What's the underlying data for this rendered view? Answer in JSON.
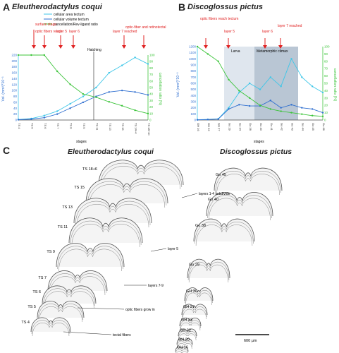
{
  "panelA": {
    "letter": "A",
    "title": "Eleutherodactylus coqui",
    "legend": [
      "cellular area tectum",
      "cellular volume tectum",
      "cancellation/Rev-ligand ratio"
    ],
    "legend_colors": [
      "#3ec6e8",
      "#2f6fd0",
      "#3cc43a"
    ],
    "events": [
      "surface stage",
      "optic fibers reach",
      "layer 5",
      "layer 6",
      "layer 7 reached",
      "optic-fiber and retinotectal"
    ],
    "hatching_label": "Hatching",
    "xlabel": "stages",
    "y_left_label": "Vol. (mm³)*10⁻³",
    "y_right_label": "cancellation ratio (%)",
    "y_left_ticks": [
      "220",
      "200",
      "180",
      "160",
      "140",
      "120",
      "100",
      "80",
      "60",
      "40",
      "20",
      "0"
    ],
    "y_right_ticks": [
      "100",
      "90",
      "80",
      "70",
      "60",
      "50",
      "40",
      "30",
      "20",
      "10",
      "0"
    ],
    "x_ticks": [
      "TS 4",
      "TS 5",
      "TS 6",
      "TS 7",
      "TS 8",
      "TS 9",
      "TS 11",
      "TS 13",
      "TS 15",
      "TS 14+4",
      "TS 18+10"
    ]
  },
  "panelB": {
    "letter": "B",
    "title": "Discoglossus pictus",
    "larva_label": "Larva",
    "meta_label": "Metamorphic climax",
    "events": [
      "optic fibers reach tectum",
      "layer 5",
      "layer 6",
      "layer 7 reached"
    ],
    "xlabel": "stages",
    "y_left_label": "Vol. (mm³)*10⁻³",
    "y_right_label": "cancellation ratio (%)",
    "y_left_ticks": [
      "1200",
      "1100",
      "1000",
      "900",
      "800",
      "700",
      "600",
      "500",
      "400",
      "300",
      "200",
      "100",
      "0"
    ],
    "y_right_ticks": [
      "100",
      "90",
      "80",
      "70",
      "60",
      "50",
      "40",
      "30",
      "20",
      "10",
      "0"
    ],
    "x_ticks": [
      "GH 16",
      "GH 22",
      "GH 27",
      "Go 29",
      "Go 34",
      "Go 38",
      "Go 40",
      "Go 41",
      "Go 42",
      "Go 43",
      "Go 44",
      "Go 45",
      "Go 66"
    ]
  },
  "panelC": {
    "letter": "C",
    "left_species": "Eleutherodactylus coqui",
    "right_species": "Discoglossus pictus",
    "left_stages": [
      "TS 18+6",
      "TS 15",
      "TS 13",
      "TS 11",
      "TS 9",
      "TS 7",
      "TS 6",
      "TS 5",
      "TS 4"
    ],
    "right_stages": [
      "Go 45",
      "Go 40",
      "Go 38",
      "Go 29",
      "GH 30",
      "GH 27",
      "GH 23",
      "GH 22",
      "GH 20",
      "GH 16"
    ],
    "annotations": [
      "layers 1-4 subdivide",
      "layer 5",
      "layers 7-9",
      "optic fibers grow in",
      "tectal fibers"
    ],
    "scale_label": "600 µm"
  },
  "chart_data": [
    {
      "type": "line",
      "title": "Eleutherodactylus coqui",
      "x": [
        "TS 4",
        "TS 5",
        "TS 6",
        "TS 7",
        "TS 8",
        "TS 9",
        "TS 11",
        "TS 13",
        "TS 15",
        "TS 14+4",
        "TS 18+10"
      ],
      "series": [
        {
          "name": "cellular area tectum",
          "values": [
            2,
            5,
            15,
            30,
            55,
            80,
            110,
            160,
            185,
            212,
            190
          ],
          "axis": "left"
        },
        {
          "name": "cellular volume tectum",
          "values": [
            1,
            3,
            8,
            20,
            40,
            60,
            80,
            95,
            100,
            95,
            85
          ],
          "axis": "left"
        },
        {
          "name": "cancellation/Rev-ligand ratio",
          "values": [
            100,
            100,
            100,
            75,
            55,
            40,
            35,
            28,
            22,
            15,
            10
          ],
          "axis": "right"
        }
      ],
      "xlabel": "stages",
      "ylabel": "Vol. (mm³)*10⁻³",
      "ylim": [
        0,
        220
      ],
      "y2lim": [
        0,
        100
      ]
    },
    {
      "type": "line",
      "title": "Discoglossus pictus",
      "x": [
        "GH 16",
        "GH 22",
        "GH 27",
        "Go 29",
        "Go 34",
        "Go 38",
        "Go 40",
        "Go 41",
        "Go 42",
        "Go 43",
        "Go 44",
        "Go 45",
        "Go 66"
      ],
      "series": [
        {
          "name": "cellular area tectum",
          "values": [
            5,
            10,
            20,
            200,
            450,
            600,
            500,
            700,
            550,
            1000,
            700,
            550,
            450
          ],
          "axis": "left"
        },
        {
          "name": "cellular volume tectum",
          "values": [
            3,
            8,
            15,
            180,
            250,
            230,
            230,
            320,
            200,
            250,
            200,
            180,
            120
          ],
          "axis": "left"
        },
        {
          "name": "cancellation/Rev-ligand ratio",
          "values": [
            100,
            90,
            80,
            55,
            40,
            30,
            20,
            15,
            12,
            10,
            8,
            6,
            5
          ],
          "axis": "right"
        }
      ],
      "xlabel": "stages",
      "ylabel": "Vol. (mm³)*10⁻³",
      "ylim": [
        0,
        1200
      ],
      "y2lim": [
        0,
        100
      ]
    }
  ]
}
